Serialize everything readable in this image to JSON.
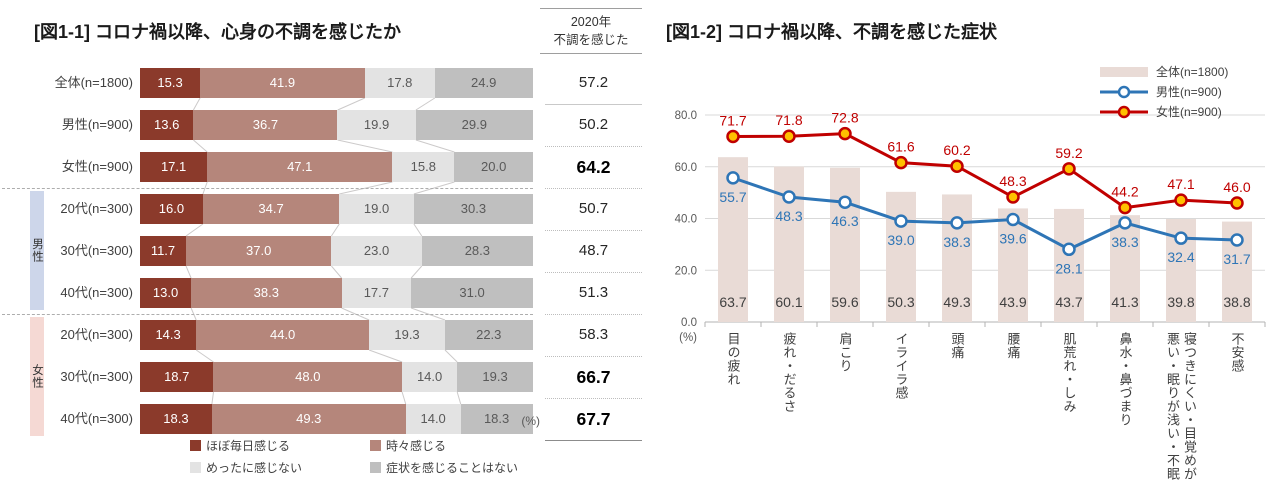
{
  "chart_data": [
    {
      "type": "bar",
      "orientation": "horizontal",
      "stacked": true,
      "title": "[図1-1] コロナ禍以降、心身の不調を感じたか",
      "unit_label": "(%)",
      "value_column_header": {
        "line1": "2020年",
        "line2": "不調を感じた"
      },
      "legend_entries": [
        "ほぼ毎日感じる",
        "時々感じる",
        "めったに感じない",
        "症状を感じることはない"
      ],
      "series_colors": [
        "#8B3A2B",
        "#B5867B",
        "#E3E3E3",
        "#BFBFBF"
      ],
      "xlim": [
        0,
        100
      ],
      "group_bands": [
        {
          "label": "男性",
          "first_row": 3,
          "last_row": 5,
          "color": "#CDD6EA"
        },
        {
          "label": "女性",
          "first_row": 6,
          "last_row": 8,
          "color": "#F5D9D4"
        }
      ],
      "rows": [
        {
          "label": "全体(n=1800)",
          "segments": [
            15.3,
            41.9,
            17.8,
            24.9
          ],
          "felt_2020": 57.2,
          "emphasis": false
        },
        {
          "label": "男性(n=900)",
          "segments": [
            13.6,
            36.7,
            19.9,
            29.9
          ],
          "felt_2020": 50.2,
          "emphasis": false
        },
        {
          "label": "女性(n=900)",
          "segments": [
            17.1,
            47.1,
            15.8,
            20.0
          ],
          "felt_2020": 64.2,
          "emphasis": true
        },
        {
          "label": "20代(n=300)",
          "segments": [
            16.0,
            34.7,
            19.0,
            30.3
          ],
          "felt_2020": 50.7,
          "emphasis": false
        },
        {
          "label": "30代(n=300)",
          "segments": [
            11.7,
            37.0,
            23.0,
            28.3
          ],
          "felt_2020": 48.7,
          "emphasis": false
        },
        {
          "label": "40代(n=300)",
          "segments": [
            13.0,
            38.3,
            17.7,
            31.0
          ],
          "felt_2020": 51.3,
          "emphasis": false
        },
        {
          "label": "20代(n=300)",
          "segments": [
            14.3,
            44.0,
            19.3,
            22.3
          ],
          "felt_2020": 58.3,
          "emphasis": false
        },
        {
          "label": "30代(n=300)",
          "segments": [
            18.7,
            48.0,
            14.0,
            19.3
          ],
          "felt_2020": 66.7,
          "emphasis": true
        },
        {
          "label": "40代(n=300)",
          "segments": [
            18.3,
            49.3,
            14.0,
            18.3
          ],
          "felt_2020": 67.7,
          "emphasis": true
        }
      ]
    },
    {
      "type": "combo-bar-line",
      "title": "[図1-2] コロナ禍以降、不調を感じた症状",
      "unit_label": "(%)",
      "ylim": [
        0,
        80
      ],
      "yticks": [
        0,
        20,
        40,
        60,
        80
      ],
      "grid": true,
      "legend_position": "top-right",
      "categories": [
        "目の疲れ",
        "疲れ・だるさ",
        "肩こり",
        "イライラ感",
        "頭痛",
        "腰痛",
        "肌荒れ・しみ",
        "鼻水・鼻づまり",
        "寝つきにくい・目覚めが悪い・眠りが浅い・不眠",
        "不安感"
      ],
      "series": [
        {
          "name": "全体(n=1800)",
          "kind": "bar",
          "color": "#E9DBD6",
          "values": [
            63.7,
            60.1,
            59.6,
            50.3,
            49.3,
            43.9,
            43.7,
            41.3,
            39.8,
            38.8
          ]
        },
        {
          "name": "男性(n=900)",
          "kind": "line",
          "color": "#2E75B6",
          "marker_fill": "#FFFFFF",
          "values": [
            55.7,
            48.3,
            46.3,
            39.0,
            38.3,
            39.6,
            28.1,
            38.3,
            32.4,
            31.7
          ]
        },
        {
          "name": "女性(n=900)",
          "kind": "line",
          "color": "#C00000",
          "marker_fill": "#FFC000",
          "values": [
            71.7,
            71.8,
            72.8,
            61.6,
            60.2,
            48.3,
            59.2,
            44.2,
            47.1,
            46.0
          ]
        }
      ]
    }
  ]
}
